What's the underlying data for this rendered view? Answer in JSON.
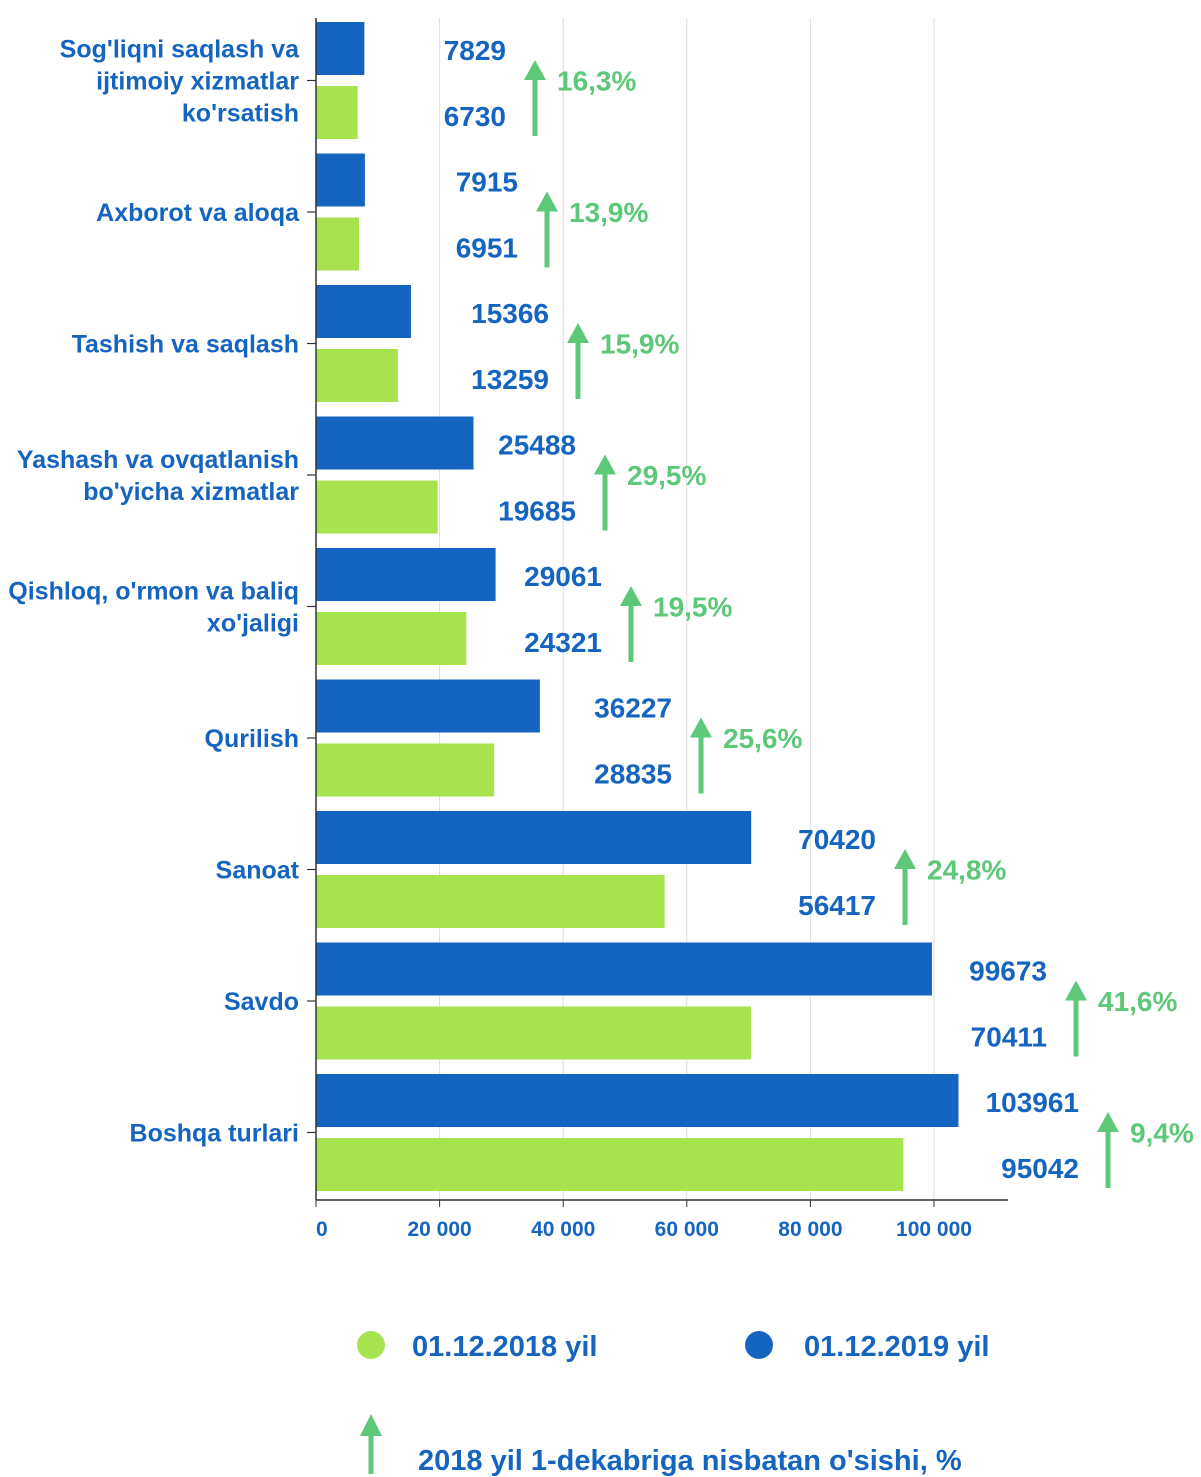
{
  "colors": {
    "series_2019": "#1565c0",
    "series_2018": "#a6e34f",
    "growth": "#5cc878",
    "text_blue": "#1565c0",
    "grid": "#dddddd",
    "axis": "#333333"
  },
  "chart_data": {
    "type": "bar",
    "orientation": "horizontal",
    "categories": [
      [
        "Sog'liqni saqlash va",
        "ijtimoiy xizmatlar",
        "ko'rsatish"
      ],
      [
        "Axborot va aloqa"
      ],
      [
        "Tashish va saqlash"
      ],
      [
        "Yashash va ovqatlanish",
        "bo'yicha xizmatlar"
      ],
      [
        "Qishloq, o'rmon va baliq",
        "xo'jaligi"
      ],
      [
        "Qurilish"
      ],
      [
        "Sanoat"
      ],
      [
        "Savdo"
      ],
      [
        "Boshqa turlari"
      ]
    ],
    "series": [
      {
        "name": "01.12.2019 yil",
        "color": "#1565c0",
        "values": [
          7829,
          7915,
          15366,
          25488,
          29061,
          36227,
          70420,
          99673,
          103961
        ]
      },
      {
        "name": "01.12.2018 yil",
        "color": "#a6e34f",
        "values": [
          6730,
          6951,
          13259,
          19685,
          24321,
          28835,
          56417,
          70411,
          95042
        ]
      }
    ],
    "value_labels_2019": [
      "7829",
      "7915",
      "15366",
      "25488",
      "29061",
      "36227",
      "70420",
      "99673",
      "103961"
    ],
    "value_labels_2018": [
      "6730",
      "6951",
      "13259",
      "19685",
      "24321",
      "28835",
      "56417",
      "70411",
      "95042"
    ],
    "growth_labels": [
      "16,3%",
      "13,9%",
      "15,9%",
      "29,5%",
      "19,5%",
      "25,6%",
      "24,8%",
      "41,6%",
      "9,4%"
    ],
    "growth_icon": "arrow-up-icon",
    "xlim": [
      0,
      110000
    ],
    "xticks": [
      0,
      20000,
      40000,
      60000,
      80000,
      100000
    ],
    "xtick_labels": [
      "0",
      "20 000",
      "40 000",
      "60 000",
      "80 000",
      "100 000"
    ],
    "grid": true,
    "legend": {
      "placement": "bottom",
      "items": [
        {
          "label": "01.12.2018 yil",
          "color": "#a6e34f",
          "icon": "circle"
        },
        {
          "label": "01.12.2019 yil",
          "color": "#1565c0",
          "icon": "circle"
        }
      ],
      "growth_note": "2018 yil 1-dekabriga nisbatan o'sishi, %",
      "growth_icon": "arrow-up-icon"
    }
  }
}
